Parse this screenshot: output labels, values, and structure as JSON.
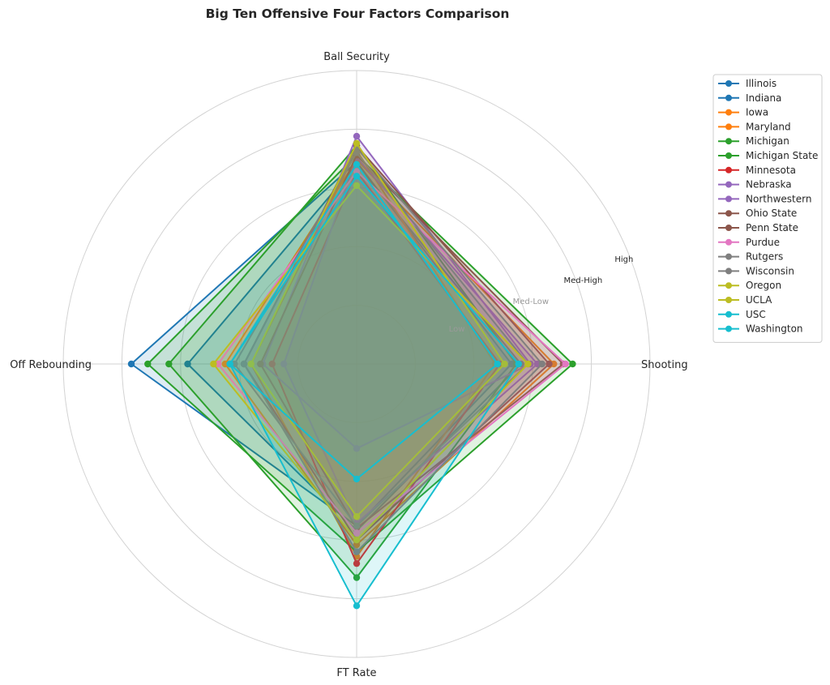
{
  "chart_data": {
    "type": "radar",
    "title": "Big Ten Offensive Four Factors Comparison",
    "axes": [
      "Ball Security",
      "Shooting",
      "FT Rate",
      "Off Rebounding"
    ],
    "scale_labels": [
      "Low",
      "Med-Low",
      "Med-High",
      "High"
    ],
    "rlim": [
      0,
      1.25
    ],
    "grid": true,
    "legend_position": "right",
    "series": [
      {
        "name": "Illinois",
        "color": "#1f77b4",
        "values": [
          0.86,
          0.66,
          0.69,
          0.96
        ]
      },
      {
        "name": "Indiana",
        "color": "#1f77b4",
        "values": [
          0.85,
          0.7,
          0.71,
          0.72
        ]
      },
      {
        "name": "Iowa",
        "color": "#ff7f0e",
        "values": [
          0.87,
          0.84,
          0.77,
          0.56
        ]
      },
      {
        "name": "Maryland",
        "color": "#ff7f0e",
        "values": [
          0.91,
          0.59,
          0.82,
          0.45
        ]
      },
      {
        "name": "Michigan",
        "color": "#2ca02c",
        "values": [
          0.89,
          0.92,
          0.8,
          0.89
        ]
      },
      {
        "name": "Michigan State",
        "color": "#2ca02c",
        "values": [
          0.93,
          0.68,
          0.91,
          0.8
        ]
      },
      {
        "name": "Minnesota",
        "color": "#d62728",
        "values": [
          0.82,
          0.61,
          0.85,
          0.36
        ]
      },
      {
        "name": "Nebraska",
        "color": "#9467bd",
        "values": [
          0.97,
          0.74,
          0.36,
          0.4
        ]
      },
      {
        "name": "Northwestern",
        "color": "#9467bd",
        "values": [
          0.88,
          0.77,
          0.68,
          0.31
        ]
      },
      {
        "name": "Ohio State",
        "color": "#8c564b",
        "values": [
          0.93,
          0.82,
          0.75,
          0.48
        ]
      },
      {
        "name": "Penn State",
        "color": "#8c564b",
        "values": [
          0.89,
          0.88,
          0.7,
          0.41
        ]
      },
      {
        "name": "Purdue",
        "color": "#e377c2",
        "values": [
          0.82,
          0.89,
          0.72,
          0.59
        ]
      },
      {
        "name": "Rutgers",
        "color": "#7f7f7f",
        "values": [
          0.9,
          0.73,
          0.69,
          0.52
        ]
      },
      {
        "name": "Wisconsin",
        "color": "#7f7f7f",
        "values": [
          0.92,
          0.79,
          0.8,
          0.48
        ]
      },
      {
        "name": "Oregon",
        "color": "#bcbd22",
        "values": [
          0.94,
          0.63,
          0.65,
          0.45
        ]
      },
      {
        "name": "UCLA",
        "color": "#bcbd22",
        "values": [
          0.76,
          0.73,
          0.75,
          0.61
        ]
      },
      {
        "name": "USC",
        "color": "#17becf",
        "values": [
          0.8,
          0.69,
          1.03,
          0.54
        ]
      },
      {
        "name": "Washington",
        "color": "#17becf",
        "values": [
          0.85,
          0.6,
          0.49,
          0.54
        ]
      }
    ]
  }
}
